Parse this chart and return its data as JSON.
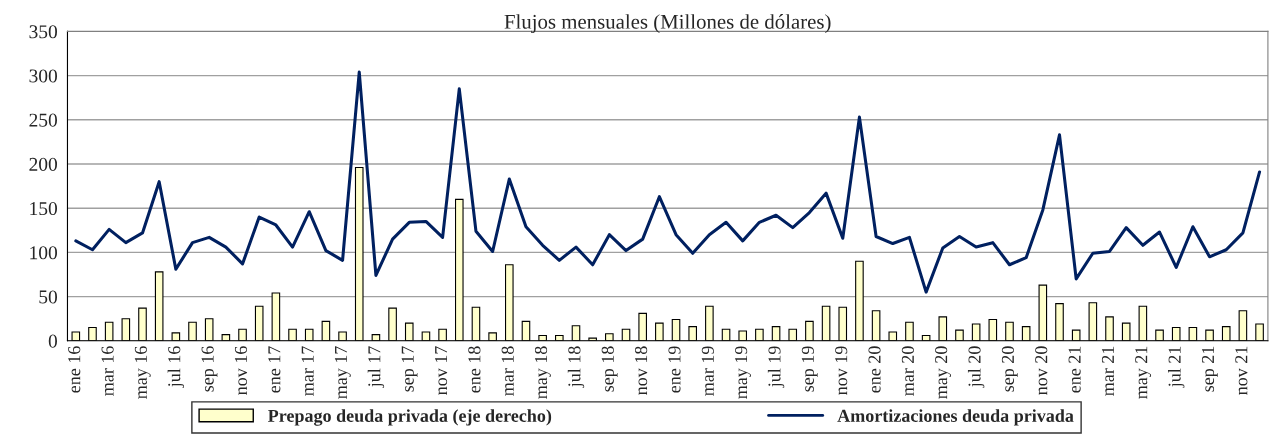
{
  "chart_data": {
    "type": "bar",
    "title": "Flujos mensuales (Millones de dólares)",
    "categories": [
      "ene 16",
      null,
      "mar 16",
      null,
      "may 16",
      null,
      "jul 16",
      null,
      "sep 16",
      null,
      "nov 16",
      null,
      "ene 17",
      null,
      "mar 17",
      null,
      "may 17",
      null,
      "jul 17",
      null,
      "sep 17",
      null,
      "nov 17",
      null,
      "ene 18",
      null,
      "mar 18",
      null,
      "may 18",
      null,
      "jul 18",
      null,
      "sep 18",
      null,
      "nov 18",
      null,
      "ene 19",
      null,
      "mar 19",
      null,
      "may 19",
      null,
      "jul 19",
      null,
      "sep 19",
      null,
      "nov 19",
      null,
      "ene 20",
      null,
      "mar 20",
      null,
      "may 20",
      null,
      "jul 20",
      null,
      "sep 20",
      null,
      "nov 20",
      null,
      "ene 21",
      null,
      "mar 21",
      null,
      "may 21",
      null,
      "jul 21",
      null,
      "sep 21",
      null,
      "nov 21",
      null
    ],
    "series": [
      {
        "name": "Prepago deuda privada (eje derecho)",
        "color": "#ffffcc",
        "values": [
          10,
          15,
          21,
          25,
          37,
          78,
          9,
          21,
          25,
          7,
          13,
          39,
          54,
          13,
          13,
          22,
          10,
          196,
          7,
          37,
          20,
          10,
          13,
          160,
          38,
          9,
          86,
          22,
          6,
          6,
          17,
          3,
          8,
          13,
          31,
          20,
          24,
          16,
          39,
          13,
          11,
          13,
          16,
          13,
          22,
          39,
          38,
          90,
          34,
          10,
          21,
          6,
          27,
          12,
          19,
          24,
          21,
          16,
          63,
          42,
          12,
          43,
          27,
          20,
          39,
          12,
          15,
          15,
          12,
          16,
          34,
          19
        ]
      },
      {
        "name": "Amortizaciones deuda privada",
        "type": "line",
        "color": "#002060",
        "values": [
          113,
          103,
          126,
          111,
          122,
          180,
          81,
          111,
          117,
          106,
          87,
          140,
          131,
          106,
          146,
          102,
          91,
          304,
          74,
          115,
          134,
          135,
          117,
          285,
          124,
          101,
          183,
          129,
          108,
          91,
          106,
          86,
          120,
          102,
          115,
          163,
          120,
          99,
          120,
          134,
          113,
          134,
          142,
          128,
          145,
          167,
          116,
          253,
          118,
          110,
          117,
          55,
          105,
          118,
          106,
          111,
          86,
          94,
          148,
          233,
          70,
          99,
          101,
          128,
          108,
          123,
          83,
          129,
          95,
          103,
          122,
          191
        ]
      }
    ],
    "ylim": [
      0,
      350
    ],
    "yticks": [
      0,
      50,
      100,
      150,
      200,
      250,
      300,
      350
    ],
    "grid": "y",
    "legend": "bottom"
  }
}
